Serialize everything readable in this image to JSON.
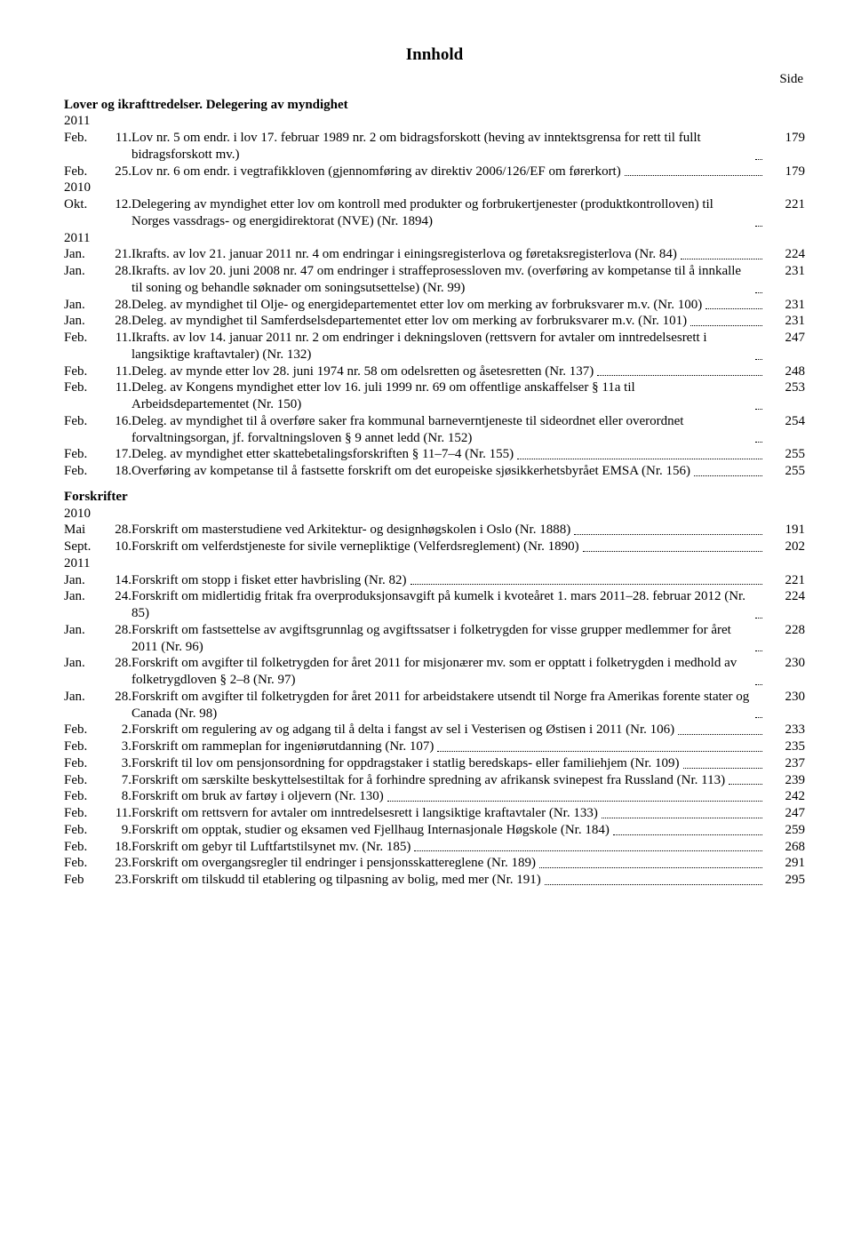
{
  "title": "Innhold",
  "side_label": "Side",
  "sections": [
    {
      "heading": "Lover og ikrafttredelser. Delegering av myndighet",
      "groups": [
        {
          "year": "2011",
          "entries": [
            {
              "month": "Feb.",
              "day": "11.",
              "text": "Lov nr. 5 om endr. i lov 17. februar 1989 nr. 2 om bidragsforskott (heving av inntektsgrensa for rett til fullt bidragsforskott mv.)",
              "page": "179"
            },
            {
              "month": "Feb.",
              "day": "25.",
              "text": "Lov nr. 6 om endr. i vegtrafikkloven (gjennomføring av direktiv 2006/126/EF om førerkort)",
              "page": "179"
            }
          ]
        },
        {
          "year": "2010",
          "entries": [
            {
              "month": "Okt.",
              "day": "12.",
              "text": "Delegering av myndighet etter lov om kontroll med produkter og forbrukertjenester (produktkontrolloven) til Norges vassdrags- og energidirektorat (NVE) (Nr. 1894)",
              "page": "221"
            }
          ]
        },
        {
          "year": "2011",
          "entries": [
            {
              "month": "Jan.",
              "day": "21.",
              "text": "Ikrafts. av lov 21. januar 2011 nr. 4 om endringar i einingsregisterlova og føretaksregisterlova (Nr. 84)",
              "page": "224"
            },
            {
              "month": "Jan.",
              "day": "28.",
              "text": "Ikrafts. av lov 20. juni 2008 nr. 47 om endringer i straffeprosessloven mv. (overføring av kompetanse til å innkalle til soning og behandle søknader om soningsutsettelse) (Nr. 99)",
              "page": "231"
            },
            {
              "month": "Jan.",
              "day": "28.",
              "text": "Deleg. av myndighet til Olje- og energidepartementet etter lov om merking av forbruksvarer m.v. (Nr. 100)",
              "page": "231"
            },
            {
              "month": "Jan.",
              "day": "28.",
              "text": "Deleg. av myndighet til Samferdselsdepartementet etter lov om merking av forbruksvarer m.v. (Nr. 101)",
              "page": "231"
            },
            {
              "month": "Feb.",
              "day": "11.",
              "text": "Ikrafts. av lov 14. januar 2011 nr. 2 om endringer i dekningsloven (rettsvern for avtaler om inntredelsesrett i langsiktige kraftavtaler) (Nr. 132)",
              "page": "247"
            },
            {
              "month": "Feb.",
              "day": "11.",
              "text": "Deleg. av mynde etter lov 28. juni 1974 nr. 58 om odelsretten og åsetesretten (Nr. 137)",
              "page": "248"
            },
            {
              "month": "Feb.",
              "day": "11.",
              "text": "Deleg. av Kongens myndighet etter lov 16. juli 1999 nr. 69 om offentlige anskaffelser § 11a til Arbeidsdepartementet (Nr. 150)",
              "page": "253"
            },
            {
              "month": "Feb.",
              "day": "16.",
              "text": "Deleg. av myndighet til å overføre saker fra kommunal barneverntjeneste til sideordnet eller overordnet forvaltningsorgan, jf. forvaltningsloven § 9 annet ledd (Nr. 152)",
              "page": "254"
            },
            {
              "month": "Feb.",
              "day": "17.",
              "text": "Deleg. av myndighet etter skattebetalingsforskriften § 11–7–4 (Nr. 155)",
              "page": "255"
            },
            {
              "month": "Feb.",
              "day": "18.",
              "text": "Overføring av kompetanse til å fastsette forskrift om det europeiske sjøsikkerhetsbyrået EMSA (Nr. 156)",
              "page": "255"
            }
          ]
        }
      ]
    },
    {
      "heading": "Forskrifter",
      "groups": [
        {
          "year": "2010",
          "entries": [
            {
              "month": "Mai",
              "day": "28.",
              "text": "Forskrift om masterstudiene ved Arkitektur- og designhøgskolen i Oslo (Nr. 1888)",
              "page": "191"
            },
            {
              "month": "Sept.",
              "day": "10.",
              "text": "Forskrift om velferdstjeneste for sivile vernepliktige (Velferdsreglement) (Nr. 1890)",
              "page": "202"
            }
          ]
        },
        {
          "year": "2011",
          "entries": [
            {
              "month": "Jan.",
              "day": "14.",
              "text": "Forskrift om stopp i fisket etter havbrisling (Nr. 82)",
              "page": "221"
            },
            {
              "month": "Jan.",
              "day": "24.",
              "text": "Forskrift om midlertidig fritak fra overproduksjonsavgift på kumelk i kvoteåret 1. mars 2011–28. februar 2012 (Nr. 85)",
              "page": "224"
            },
            {
              "month": "Jan.",
              "day": "28.",
              "text": "Forskrift om fastsettelse av avgiftsgrunnlag og avgiftssatser i folketrygden for visse grupper medlemmer for året 2011 (Nr. 96)",
              "page": "228"
            },
            {
              "month": "Jan.",
              "day": "28.",
              "text": "Forskrift om avgifter til folketrygden for året 2011 for misjonærer mv. som er opptatt i folketrygden i medhold av folketrygdloven § 2–8 (Nr. 97)",
              "page": "230"
            },
            {
              "month": "Jan.",
              "day": "28.",
              "text": "Forskrift om avgifter til folketrygden for året 2011 for arbeidstakere utsendt til Norge fra Amerikas forente stater og Canada (Nr. 98)",
              "page": "230"
            },
            {
              "month": "Feb.",
              "day": "2.",
              "text": "Forskrift om regulering av og adgang til å delta i fangst av sel i Vesterisen og Østisen i 2011 (Nr. 106)",
              "page": "233"
            },
            {
              "month": "Feb.",
              "day": "3.",
              "text": "Forskrift om rammeplan for ingeniørutdanning (Nr. 107)",
              "page": "235"
            },
            {
              "month": "Feb.",
              "day": "3.",
              "text": "Forskrift til lov om pensjonsordning for oppdragstaker i statlig beredskaps- eller familiehjem (Nr. 109)",
              "page": "237"
            },
            {
              "month": "Feb.",
              "day": "7.",
              "text": "Forskrift om særskilte beskyttelsestiltak for å forhindre spredning av afrikansk svinepest fra Russland (Nr. 113)",
              "page": "239"
            },
            {
              "month": "Feb.",
              "day": "8.",
              "text": "Forskrift om bruk av fartøy i oljevern (Nr. 130)",
              "page": "242"
            },
            {
              "month": "Feb.",
              "day": "11.",
              "text": "Forskrift om rettsvern for avtaler om inntredelsesrett i langsiktige kraftavtaler (Nr. 133)",
              "page": "247"
            },
            {
              "month": "Feb.",
              "day": "9.",
              "text": "Forskrift om opptak, studier og eksamen ved Fjellhaug Internasjonale Høgskole (Nr. 184)",
              "page": "259"
            },
            {
              "month": "Feb.",
              "day": "18.",
              "text": "Forskrift om gebyr til Luftfartstilsynet mv. (Nr. 185)",
              "page": "268"
            },
            {
              "month": "Feb.",
              "day": "23.",
              "text": "Forskrift om overgangsregler til endringer i pensjonsskattereglene (Nr. 189)",
              "page": "291"
            },
            {
              "month": "Feb",
              "day": "23.",
              "text": "Forskrift om tilskudd til etablering og tilpasning av bolig, med mer (Nr. 191)",
              "page": "295"
            }
          ]
        }
      ]
    }
  ]
}
